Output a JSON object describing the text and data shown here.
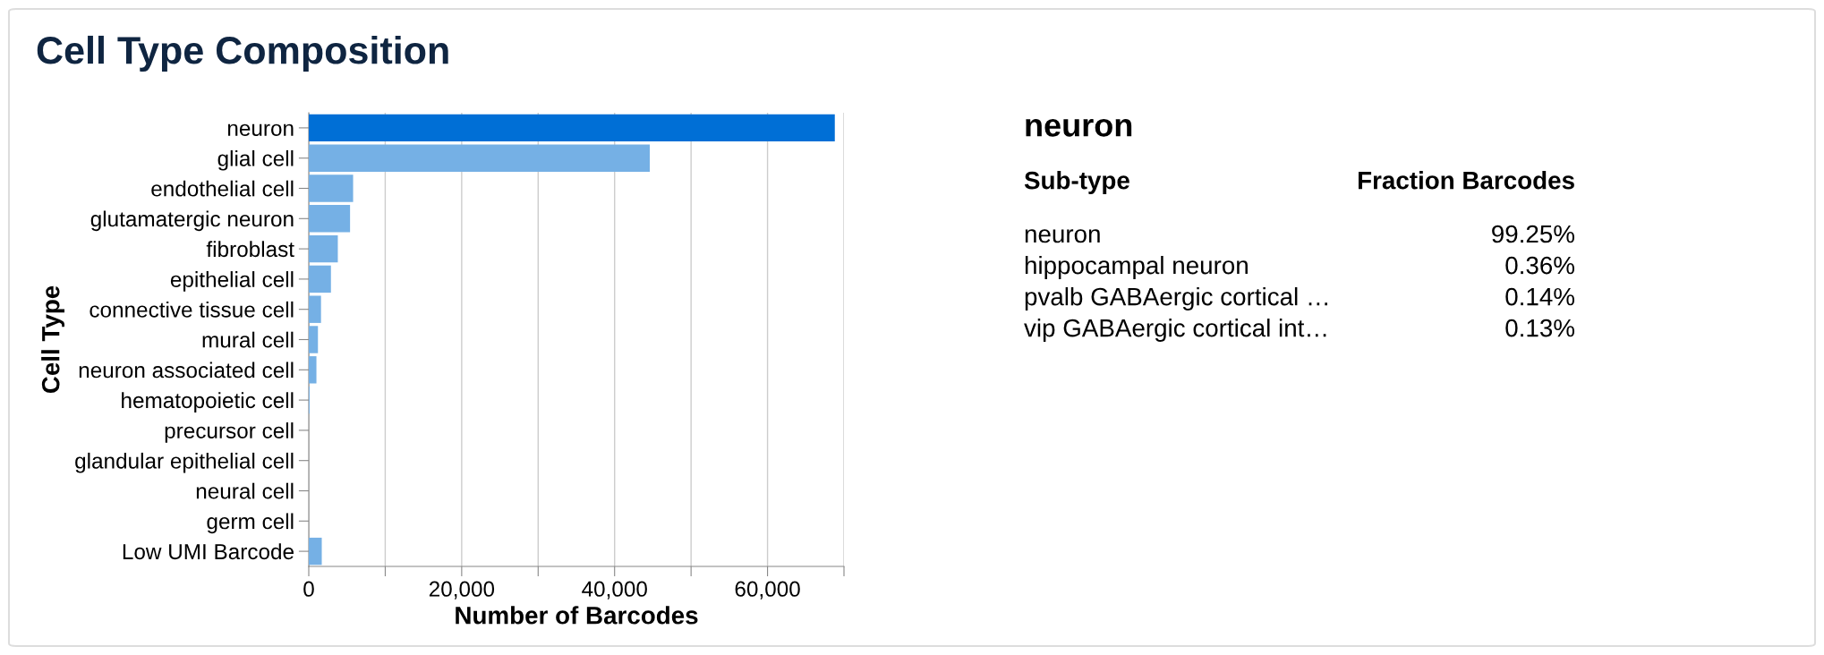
{
  "chart_data": [
    {
      "type": "bar",
      "orientation": "horizontal",
      "title": "Cell Type Composition",
      "xlabel": "Number of Barcodes",
      "ylabel": "Cell Type",
      "categories": [
        "neuron",
        "glial cell",
        "endothelial cell",
        "glutamatergic neuron",
        "fibroblast",
        "epithelial cell",
        "connective tissue cell",
        "mural cell",
        "neuron associated cell",
        "hematopoietic cell",
        "precursor cell",
        "glandular epithelial cell",
        "neural cell",
        "germ cell",
        "Low UMI Barcode"
      ],
      "values": [
        68800,
        44600,
        5800,
        5400,
        3800,
        2900,
        1600,
        1200,
        1000,
        100,
        0,
        0,
        0,
        0,
        1700
      ],
      "colors": [
        "#006fd6",
        "#75b0e5",
        "#75b0e5",
        "#75b0e5",
        "#75b0e5",
        "#75b0e5",
        "#75b0e5",
        "#75b0e5",
        "#75b0e5",
        "#75b0e5",
        "#75b0e5",
        "#75b0e5",
        "#75b0e5",
        "#75b0e5",
        "#75b0e5"
      ],
      "xlim": [
        0,
        70000
      ],
      "xticks": [
        0,
        {
          "value": 10000,
          "label": null
        },
        {
          "value": 20000,
          "label": "20,000"
        },
        {
          "value": 30000,
          "label": null
        },
        {
          "value": 40000,
          "label": "40,000"
        },
        {
          "value": 50000,
          "label": null
        },
        {
          "value": 60000,
          "label": "60,000"
        },
        {
          "value": 70000,
          "label": null
        }
      ],
      "grid": "x"
    },
    {
      "type": "other",
      "title": "neuron",
      "annotations": [
        "Sub-type",
        "Fraction Barcodes"
      ],
      "categories": [
        "neuron",
        "hippocampal neuron",
        "pvalb GABAergic cortical …",
        "vip GABAergic cortical int…"
      ],
      "value_labels": [
        "99.25%",
        "0.36%",
        "0.14%",
        "0.13%"
      ]
    }
  ]
}
